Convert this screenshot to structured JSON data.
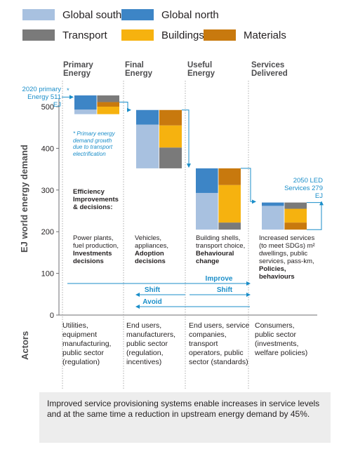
{
  "legend": [
    {
      "label": "Global south",
      "color": "#a8c1e0"
    },
    {
      "label": "Global north",
      "color": "#3d85c6"
    },
    {
      "label": "Transport",
      "color": "#7a7a7a"
    },
    {
      "label": "Buildings",
      "color": "#f6b20f"
    },
    {
      "label": "Materials",
      "color": "#c8790e"
    }
  ],
  "columns": [
    {
      "line1": "Primary",
      "line2": "Energy"
    },
    {
      "line1": "Final",
      "line2": "Energy"
    },
    {
      "line1": "Useful",
      "line2": "Energy"
    },
    {
      "line1": "Services",
      "line2": "Delivered"
    }
  ],
  "y_axis_label": "EJ world energy demand",
  "y_ticks": [
    "0",
    "100",
    "200",
    "300",
    "400",
    "500"
  ],
  "annotations": {
    "primary_2020_line1": "2020 primary",
    "primary_2020_line2": "Energy 511 EJ",
    "star_note_line1": "* Primary energy",
    "star_note_line2": "demand growth",
    "star_note_line3": "due to transport",
    "star_note_line4": "electrification",
    "led_line1": "2050 LED",
    "led_line2": "Services 279 EJ",
    "star_marker": "*",
    "efficiency_line1": "Efficiency",
    "efficiency_line2": "Improvements",
    "efficiency_line3": "& decisions:"
  },
  "decisions": [
    {
      "l1": "Power plants,",
      "l2": "fuel production,",
      "b1": "Investments",
      "b2": "decisions"
    },
    {
      "l1": "Vehicles,",
      "l2": "appliances,",
      "b1": "Adoption",
      "b2": "decisions"
    },
    {
      "l1": "Building shells,",
      "l2": "transport choice,",
      "b1": "Behavioural",
      "b2": "change"
    },
    {
      "l1": "Increased services",
      "l2": "(to meet SDGs) m²",
      "l3": "dwellings, public",
      "l4": "services, pass-km,",
      "b1": "Policies,",
      "b2": "behaviours"
    }
  ],
  "arrows": {
    "improve": "Improve",
    "shift_right": "Shift",
    "shift_left": "Shift",
    "avoid": "Avoid"
  },
  "actors_label": "Actors",
  "actors": [
    [
      "Utilities,",
      "equipment",
      "manufacturing,",
      "public sector",
      "(regulation)"
    ],
    [
      "End users,",
      "manufacturers,",
      "public sector",
      "(regulation,",
      "incentives)"
    ],
    [
      "End users, service",
      "companies,",
      "transport",
      "operators, public",
      "sector (standards)"
    ],
    [
      "Consumers,",
      "public sector",
      "(investments,",
      "welfare policies)"
    ]
  ],
  "caption": "Improved service provisioning systems enable increases in service levels and at the same time a reduction in upstream energy demand by 45%.",
  "chart_data": {
    "type": "bar",
    "title": "",
    "xlabel": "",
    "ylabel": "EJ world energy demand",
    "ylim": [
      0,
      540
    ],
    "categories": [
      "Primary Energy",
      "Final Energy",
      "Useful Energy",
      "Services Delivered"
    ],
    "series": [
      {
        "name": "Global south",
        "values": [
          480,
          350,
          220,
          205
        ]
      },
      {
        "name": "Global north",
        "values": [
          511,
          490,
          352,
          270
        ]
      },
      {
        "name": "Transport",
        "values": [
          488,
          350,
          213,
          255
        ]
      },
      {
        "name": "Buildings",
        "values": [
          511,
          450,
          310,
          220
        ]
      },
      {
        "name": "Materials",
        "values": [
          505,
          490,
          352,
          255
        ]
      }
    ],
    "bars": [
      {
        "category": "Primary Energy",
        "region": [
          {
            "name": "Global south",
            "from": 482,
            "to": 493
          },
          {
            "name": "Global north",
            "from": 493,
            "to": 527
          }
        ],
        "sector": [
          {
            "name": "Buildings",
            "from": 482,
            "to": 500
          },
          {
            "name": "Materials",
            "from": 500,
            "to": 511
          },
          {
            "name": "Transport",
            "from": 511,
            "to": 527
          }
        ]
      },
      {
        "category": "Final Energy",
        "region": [
          {
            "name": "Global south",
            "from": 352,
            "to": 457
          },
          {
            "name": "Global north",
            "from": 457,
            "to": 492
          }
        ],
        "sector": [
          {
            "name": "Transport",
            "from": 352,
            "to": 402
          },
          {
            "name": "Buildings",
            "from": 402,
            "to": 455
          },
          {
            "name": "Materials",
            "from": 455,
            "to": 492
          }
        ]
      },
      {
        "category": "Useful Energy",
        "region": [
          {
            "name": "Global south",
            "from": 205,
            "to": 293
          },
          {
            "name": "Global north",
            "from": 293,
            "to": 352
          }
        ],
        "sector": [
          {
            "name": "Transport",
            "from": 205,
            "to": 222
          },
          {
            "name": "Buildings",
            "from": 222,
            "to": 312
          },
          {
            "name": "Materials",
            "from": 312,
            "to": 352
          }
        ]
      },
      {
        "category": "Services Delivered",
        "region": [
          {
            "name": "Global south",
            "from": 205,
            "to": 262
          },
          {
            "name": "Global north",
            "from": 262,
            "to": 270
          }
        ],
        "sector": [
          {
            "name": "Materials",
            "from": 205,
            "to": 222
          },
          {
            "name": "Buildings",
            "from": 222,
            "to": 255
          },
          {
            "name": "Transport",
            "from": 255,
            "to": 270
          }
        ]
      }
    ],
    "markers": [
      {
        "label": "2020 primary Energy 511 EJ",
        "value": 511
      },
      {
        "label": "2050 LED Services 279 EJ",
        "value": 279
      }
    ]
  }
}
